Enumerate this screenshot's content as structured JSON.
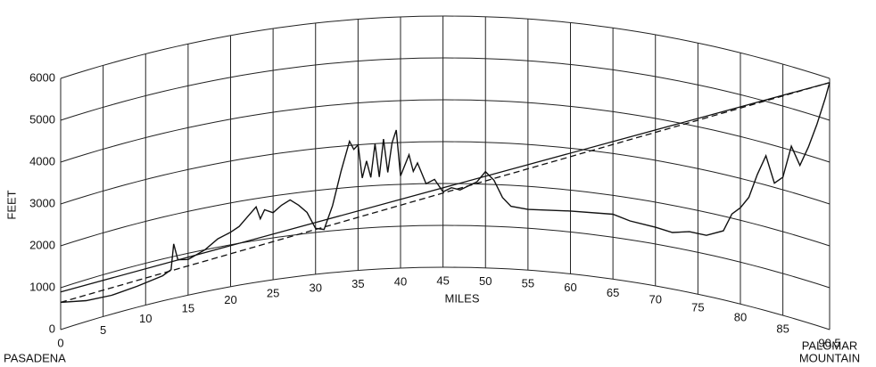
{
  "chart_data": {
    "type": "line",
    "x_label": "MILES",
    "y_label": "FEET",
    "start_label": "PASADENA",
    "end_label": [
      "PALOMAR",
      "MOUNTAIN"
    ],
    "xlim": [
      0,
      90.5
    ],
    "ylim": [
      0,
      6000
    ],
    "xticks": [
      0,
      5,
      10,
      15,
      20,
      25,
      30,
      35,
      40,
      45,
      50,
      55,
      60,
      65,
      70,
      75,
      80,
      85,
      90.5
    ],
    "yticks": [
      0,
      1000,
      2000,
      3000,
      4000,
      5000,
      6000
    ],
    "grid": true,
    "earth_curvature": true,
    "profile": {
      "color": "#111",
      "x": [
        0,
        3,
        6,
        9,
        12,
        13,
        13.3,
        13.8,
        15,
        17,
        18.5,
        20,
        21,
        22,
        23,
        23.5,
        24,
        25,
        26,
        27,
        28,
        29,
        30,
        31,
        32,
        33,
        34,
        34.5,
        35,
        35.5,
        36,
        36.5,
        37,
        37.5,
        38,
        38.5,
        39,
        39.5,
        40,
        41,
        41.5,
        42,
        43,
        44,
        45,
        46,
        47,
        48,
        49,
        50,
        51,
        52,
        53,
        55,
        60,
        65,
        67,
        70,
        72,
        74,
        76,
        78,
        79,
        80,
        81,
        82,
        83,
        84,
        85,
        86,
        87,
        88,
        89,
        90,
        90.5
      ],
      "values": [
        650,
        500,
        450,
        500,
        600,
        700,
        1300,
        900,
        850,
        1000,
        1200,
        1300,
        1400,
        1600,
        1800,
        1500,
        1700,
        1600,
        1750,
        1850,
        1700,
        1500,
        1100,
        1050,
        1600,
        2400,
        3100,
        2900,
        3000,
        2200,
        2600,
        2200,
        3000,
        2200,
        3100,
        2300,
        3000,
        3300,
        2200,
        2700,
        2300,
        2500,
        2000,
        2100,
        1800,
        1900,
        1850,
        1950,
        2050,
        2300,
        2100,
        1700,
        1500,
        1450,
        1500,
        1550,
        1450,
        1400,
        1350,
        1450,
        1450,
        1650,
        2100,
        2300,
        2600,
        3200,
        3700,
        3100,
        3300,
        4100,
        3700,
        4200,
        4800,
        5500,
        5900
      ]
    },
    "sight_lines": [
      {
        "style": "solid",
        "color": "#111",
        "x": [
          0,
          90.5
        ],
        "values": [
          900,
          5900
        ]
      },
      {
        "style": "dashed",
        "color": "#111",
        "x": [
          0,
          90.5
        ],
        "values": [
          650,
          5900
        ]
      }
    ]
  }
}
